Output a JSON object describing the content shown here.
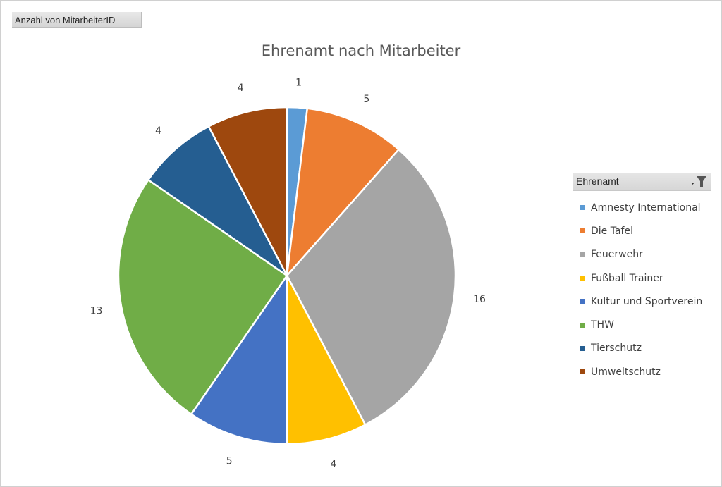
{
  "field_button": {
    "label": "Anzahl von MitarbeiterID"
  },
  "legend": {
    "header": "Ehrenamt"
  },
  "chart_data": {
    "type": "pie",
    "title": "Ehrenamt nach Mitarbeiter",
    "legend_position": "right",
    "categories": [
      "Amnesty International",
      "Die Tafel",
      "Feuerwehr",
      "Fußball Trainer",
      "Kultur und Sportverein",
      "THW",
      "Tierschutz",
      "Umweltschutz"
    ],
    "values": [
      1,
      5,
      16,
      4,
      5,
      13,
      4,
      4
    ],
    "colors": [
      "#5b9bd5",
      "#ed7d31",
      "#a5a5a5",
      "#ffc000",
      "#4472c4",
      "#70ad47",
      "#255e91",
      "#9e480e"
    ]
  }
}
